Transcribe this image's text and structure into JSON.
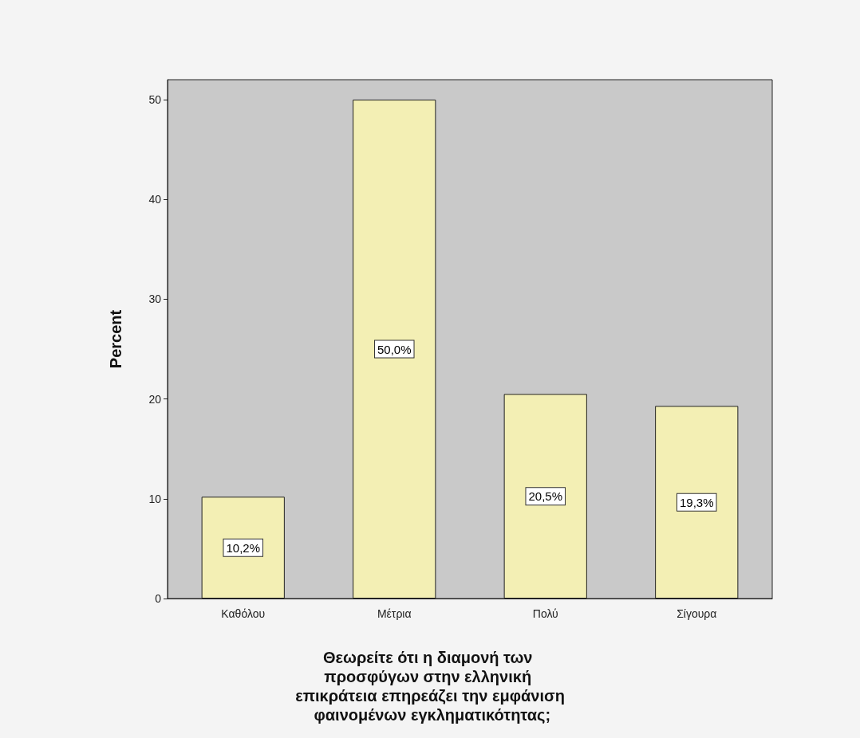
{
  "chart_data": {
    "type": "bar",
    "xlabel": "Θεωρείτε ότι η διαμονή των προσφύγων στην ελληνική επικράτεια επηρεάζει την εμφάνιση φαινομένων εγκληματικότητας;",
    "ylabel": "Percent",
    "categories": [
      "Καθόλου",
      "Μέτρια",
      "Πολύ",
      "Σίγουρα"
    ],
    "values": [
      10.2,
      50.0,
      20.5,
      19.3
    ],
    "value_labels": [
      "10,2%",
      "50,0%",
      "20,5%",
      "19,3%"
    ],
    "color": "#f3efb4",
    "ylim": [
      0,
      52
    ],
    "yticks": [
      0,
      10,
      20,
      30,
      40,
      50
    ],
    "grid": false
  }
}
